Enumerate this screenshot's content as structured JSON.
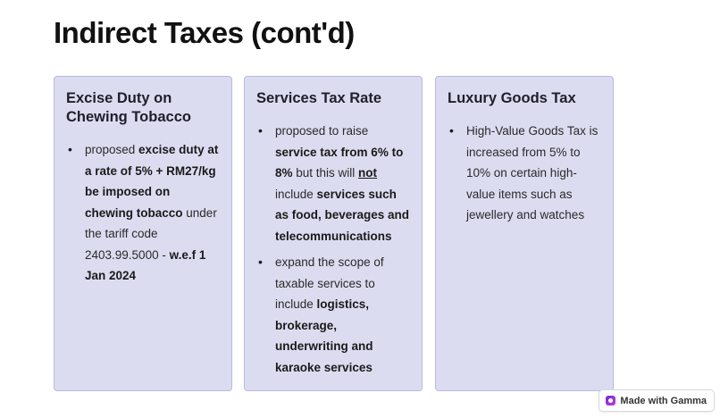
{
  "slide": {
    "title": "Indirect Taxes (cont'd)"
  },
  "cards": [
    {
      "heading": "Excise Duty on Chewing Tobacco",
      "bullets": [
        [
          {
            "t": "proposed "
          },
          {
            "t": "excise duty at a rate of 5% + RM27/kg be imposed on chewing tobacco",
            "b": true
          },
          {
            "t": " under the tariff code 2403.99.5000 - "
          },
          {
            "t": "w.e.f 1 Jan 2024",
            "b": true
          }
        ]
      ]
    },
    {
      "heading": "Services Tax Rate",
      "bullets": [
        [
          {
            "t": "proposed to raise "
          },
          {
            "t": "service tax from 6% to 8%",
            "b": true
          },
          {
            "t": " but this will "
          },
          {
            "t": "not ",
            "b": true,
            "u": true
          },
          {
            "t": "include "
          },
          {
            "t": "services such as food, beverages and telecommunications",
            "b": true
          }
        ],
        [
          {
            "t": "expand the scope of taxable services to include "
          },
          {
            "t": "logistics, brokerage, underwriting and karaoke services",
            "b": true
          }
        ]
      ]
    },
    {
      "heading": "Luxury Goods Tax",
      "bullets": [
        [
          {
            "t": "High-Value Goods Tax is increased from 5% to 10% on certain high-value items such as jewellery and watches"
          }
        ]
      ]
    }
  ],
  "badge": {
    "label": "Made with Gamma",
    "icon": "gamma-logo-icon"
  },
  "colors": {
    "card_background": "#dcdcf1",
    "card_border": "#b9b9e0",
    "text": "#1a1a1a"
  }
}
